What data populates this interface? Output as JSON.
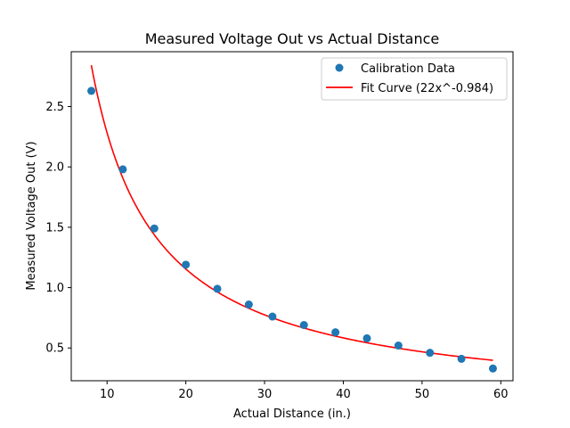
{
  "chart_data": {
    "type": "scatter",
    "title": "Measured Voltage Out vs Actual Distance",
    "xlabel": "Actual Distance (in.)",
    "ylabel": "Measured Voltage Out (V)",
    "xlim": [
      5.45,
      61.55
    ],
    "ylim": [
      0.2285,
      2.9545
    ],
    "xticks": [
      10,
      20,
      30,
      40,
      50,
      60
    ],
    "yticks": [
      0.5,
      1.0,
      1.5,
      2.0,
      2.5
    ],
    "grid": false,
    "legend_position": "top-right",
    "series": [
      {
        "name": "Calibration Data",
        "kind": "scatter",
        "color": "#1f77b4",
        "x": [
          8,
          12,
          16,
          20,
          24,
          28,
          31,
          35,
          39,
          43,
          47,
          51,
          55,
          59
        ],
        "y": [
          2.63,
          1.98,
          1.49,
          1.19,
          0.99,
          0.86,
          0.76,
          0.69,
          0.63,
          0.58,
          0.52,
          0.46,
          0.41,
          0.33
        ]
      },
      {
        "name": "Fit Curve (22x^-0.984)",
        "kind": "line",
        "color": "#ff0000",
        "coefficient": 22,
        "exponent": -0.984,
        "x_range": [
          8,
          59
        ]
      }
    ]
  }
}
